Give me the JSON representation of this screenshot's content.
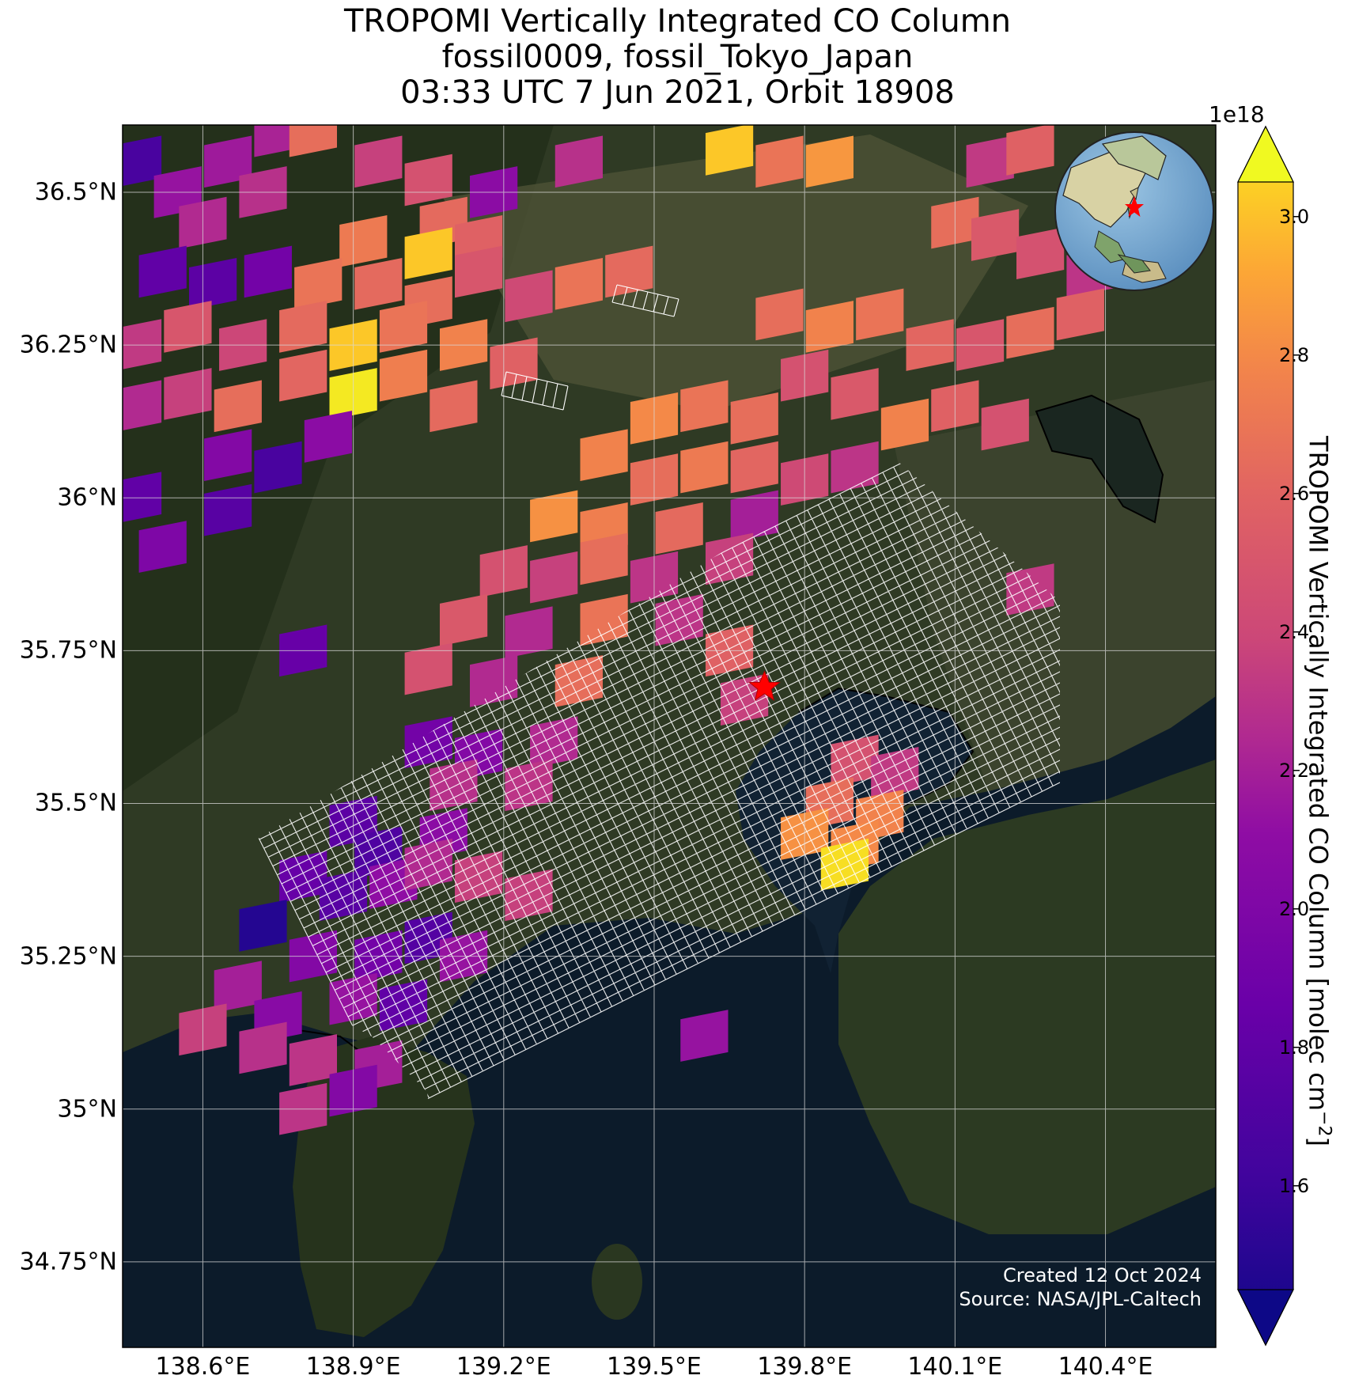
{
  "title": {
    "line1": "TROPOMI Vertically Integrated CO Column",
    "line2": "fossil0009, fossil_Tokyo_Japan",
    "line3": "03:33 UTC 7 Jun 2021, Orbit 18908"
  },
  "map": {
    "extent": {
      "lon_min": 138.44,
      "lon_max": 140.62,
      "lat_min": 34.61,
      "lat_max": 36.61
    },
    "lat_labels": [
      "36.5°N",
      "36.25°N",
      "36°N",
      "35.75°N",
      "35.5°N",
      "35.25°N",
      "35°N",
      "34.75°N"
    ],
    "lat_values": [
      36.5,
      36.25,
      36.0,
      35.75,
      35.5,
      35.25,
      35.0,
      34.75
    ],
    "lon_labels": [
      "138.6°E",
      "138.9°E",
      "139.2°E",
      "139.5°E",
      "139.8°E",
      "140.1°E",
      "140.4°E"
    ],
    "lon_values": [
      138.6,
      138.9,
      139.2,
      139.5,
      139.8,
      140.1,
      140.4
    ],
    "target_site": {
      "name": "fossil_Tokyo_Japan",
      "lon": 139.72,
      "lat": 35.69,
      "marker": "red-star"
    },
    "background": "satellite imagery",
    "grid": true,
    "inset_globe": {
      "center_lon": 139.7,
      "center_lat": 35.7,
      "marker": "red-star"
    }
  },
  "colorbar": {
    "label": "TROPOMI Vertically Integrated CO Column [molec cm",
    "label_sup": "−2",
    "label_end": "]",
    "exponent": "1e18",
    "ticks": [
      "1.6",
      "1.8",
      "2.0",
      "2.2",
      "2.4",
      "2.6",
      "2.8",
      "3.0"
    ],
    "tick_values": [
      1.6,
      1.8,
      2.0,
      2.2,
      2.4,
      2.6,
      2.8,
      3.0
    ],
    "range": [
      1.45,
      3.05
    ],
    "colormap": "plasma",
    "extend": "both"
  },
  "footer": {
    "created": "Created 12 Oct 2024",
    "source": "Source: NASA/JPL-Caltech"
  },
  "chart_data": {
    "type": "heatmap",
    "units": "1e18 molec cm-2",
    "cells": [
      [
        138.47,
        36.55,
        1.72
      ],
      [
        138.55,
        36.5,
        2.15
      ],
      [
        138.65,
        36.55,
        2.18
      ],
      [
        138.75,
        36.6,
        2.22
      ],
      [
        138.6,
        36.45,
        2.25
      ],
      [
        138.72,
        36.5,
        2.28
      ],
      [
        138.82,
        36.6,
        2.62
      ],
      [
        138.95,
        36.55,
        2.35
      ],
      [
        139.05,
        36.52,
        2.45
      ],
      [
        139.18,
        36.5,
        2.1
      ],
      [
        139.35,
        36.55,
        2.28
      ],
      [
        139.65,
        36.57,
        2.95
      ],
      [
        139.75,
        36.55,
        2.65
      ],
      [
        139.85,
        36.55,
        2.8
      ],
      [
        140.17,
        36.55,
        2.32
      ],
      [
        140.25,
        36.57,
        2.55
      ],
      [
        139.08,
        36.45,
        2.6
      ],
      [
        138.92,
        36.42,
        2.68
      ],
      [
        139.05,
        36.4,
        2.95
      ],
      [
        139.15,
        36.42,
        2.55
      ],
      [
        138.52,
        36.37,
        1.85
      ],
      [
        138.62,
        36.35,
        1.82
      ],
      [
        138.73,
        36.37,
        1.95
      ],
      [
        138.83,
        36.35,
        2.65
      ],
      [
        138.95,
        36.35,
        2.6
      ],
      [
        139.05,
        36.32,
        2.62
      ],
      [
        139.15,
        36.37,
        2.48
      ],
      [
        139.25,
        36.33,
        2.4
      ],
      [
        139.35,
        36.35,
        2.65
      ],
      [
        139.45,
        36.37,
        2.6
      ],
      [
        140.1,
        36.45,
        2.62
      ],
      [
        140.18,
        36.43,
        2.5
      ],
      [
        140.27,
        36.4,
        2.45
      ],
      [
        140.37,
        36.37,
        2.3
      ],
      [
        138.47,
        36.25,
        2.32
      ],
      [
        138.57,
        36.28,
        2.48
      ],
      [
        138.68,
        36.25,
        2.38
      ],
      [
        138.8,
        36.28,
        2.6
      ],
      [
        138.9,
        36.25,
        2.95
      ],
      [
        139.0,
        36.28,
        2.65
      ],
      [
        139.12,
        36.25,
        2.72
      ],
      [
        139.22,
        36.22,
        2.55
      ],
      [
        138.47,
        36.15,
        2.25
      ],
      [
        138.57,
        36.17,
        2.35
      ],
      [
        138.67,
        36.15,
        2.62
      ],
      [
        138.8,
        36.2,
        2.58
      ],
      [
        138.9,
        36.17,
        3.02
      ],
      [
        139.0,
        36.2,
        2.7
      ],
      [
        139.1,
        36.15,
        2.6
      ],
      [
        138.65,
        36.07,
        2.05
      ],
      [
        138.75,
        36.05,
        1.72
      ],
      [
        138.85,
        36.1,
        2.1
      ],
      [
        138.47,
        36.0,
        1.85
      ],
      [
        138.52,
        35.92,
        2.02
      ],
      [
        138.65,
        35.98,
        1.8
      ],
      [
        139.75,
        36.3,
        2.62
      ],
      [
        139.85,
        36.28,
        2.72
      ],
      [
        139.95,
        36.3,
        2.65
      ],
      [
        140.05,
        36.25,
        2.58
      ],
      [
        140.15,
        36.25,
        2.48
      ],
      [
        140.25,
        36.27,
        2.62
      ],
      [
        140.35,
        36.3,
        2.55
      ],
      [
        139.5,
        36.13,
        2.75
      ],
      [
        139.6,
        36.15,
        2.65
      ],
      [
        139.7,
        36.13,
        2.62
      ],
      [
        139.8,
        36.2,
        2.45
      ],
      [
        139.9,
        36.17,
        2.5
      ],
      [
        140.0,
        36.12,
        2.72
      ],
      [
        140.1,
        36.15,
        2.55
      ],
      [
        140.2,
        36.12,
        2.45
      ],
      [
        139.4,
        36.07,
        2.72
      ],
      [
        139.5,
        36.03,
        2.62
      ],
      [
        139.6,
        36.05,
        2.68
      ],
      [
        139.7,
        36.05,
        2.58
      ],
      [
        139.8,
        36.03,
        2.4
      ],
      [
        139.9,
        36.05,
        2.3
      ],
      [
        139.3,
        35.97,
        2.78
      ],
      [
        139.4,
        35.95,
        2.7
      ],
      [
        139.55,
        35.95,
        2.6
      ],
      [
        139.7,
        35.97,
        2.2
      ],
      [
        139.2,
        35.88,
        2.45
      ],
      [
        139.3,
        35.87,
        2.35
      ],
      [
        139.4,
        35.9,
        2.62
      ],
      [
        139.5,
        35.87,
        2.3
      ],
      [
        139.65,
        35.9,
        2.35
      ],
      [
        139.12,
        35.8,
        2.5
      ],
      [
        139.25,
        35.78,
        2.25
      ],
      [
        139.4,
        35.8,
        2.65
      ],
      [
        139.55,
        35.8,
        2.3
      ],
      [
        139.65,
        35.75,
        2.55
      ],
      [
        139.05,
        35.72,
        2.45
      ],
      [
        139.18,
        35.7,
        2.25
      ],
      [
        139.35,
        35.7,
        2.62
      ],
      [
        139.68,
        35.67,
        2.35
      ],
      [
        139.05,
        35.6,
        1.95
      ],
      [
        139.15,
        35.58,
        2.05
      ],
      [
        139.3,
        35.6,
        2.25
      ],
      [
        139.1,
        35.53,
        2.28
      ],
      [
        139.25,
        35.53,
        2.3
      ],
      [
        139.9,
        35.57,
        2.45
      ],
      [
        139.98,
        35.55,
        2.32
      ],
      [
        139.85,
        35.5,
        2.62
      ],
      [
        139.95,
        35.48,
        2.72
      ],
      [
        139.8,
        35.45,
        2.78
      ],
      [
        139.9,
        35.43,
        2.75
      ],
      [
        139.88,
        35.4,
        3.0
      ],
      [
        140.25,
        35.85,
        2.32
      ],
      [
        138.8,
        35.75,
        1.88
      ],
      [
        138.9,
        35.47,
        1.82
      ],
      [
        138.95,
        35.42,
        1.75
      ],
      [
        138.8,
        35.38,
        1.88
      ],
      [
        138.88,
        35.35,
        1.8
      ],
      [
        138.98,
        35.37,
        2.12
      ],
      [
        139.08,
        35.45,
        2.1
      ],
      [
        139.05,
        35.4,
        2.25
      ],
      [
        139.15,
        35.38,
        2.35
      ],
      [
        139.25,
        35.35,
        2.35
      ],
      [
        138.72,
        35.3,
        1.55
      ],
      [
        138.82,
        35.25,
        2.05
      ],
      [
        138.95,
        35.25,
        1.95
      ],
      [
        139.05,
        35.28,
        1.78
      ],
      [
        139.12,
        35.25,
        2.15
      ],
      [
        138.67,
        35.2,
        2.2
      ],
      [
        138.75,
        35.15,
        2.08
      ],
      [
        138.9,
        35.18,
        2.15
      ],
      [
        139.0,
        35.17,
        1.85
      ],
      [
        138.6,
        35.13,
        2.35
      ],
      [
        138.72,
        35.1,
        2.28
      ],
      [
        138.82,
        35.08,
        2.3
      ],
      [
        138.95,
        35.07,
        2.2
      ],
      [
        138.9,
        35.03,
        2.05
      ],
      [
        138.8,
        35.0,
        2.3
      ],
      [
        139.6,
        35.12,
        2.15
      ]
    ]
  }
}
